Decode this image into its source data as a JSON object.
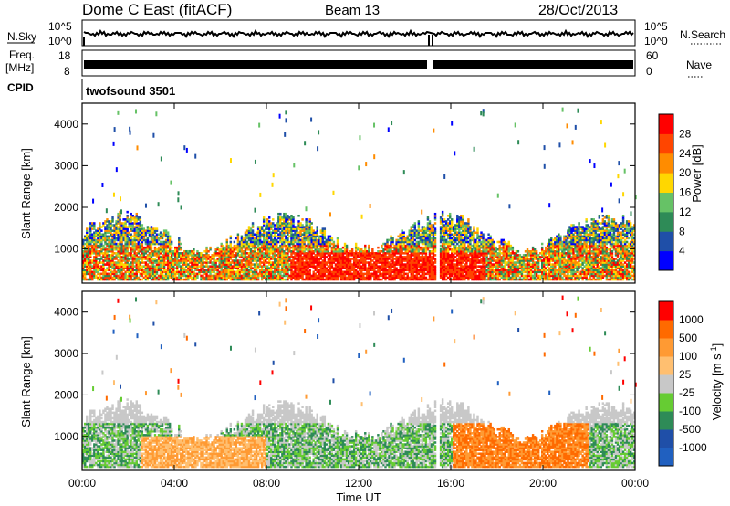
{
  "header": {
    "station": "Dome C East (fitACF)",
    "beam": "Beam 13",
    "date": "28/Oct/2013"
  },
  "side_labels": {
    "nsky": "N.Sky",
    "freq_line1": "Freq.",
    "freq_line2": "[MHz]",
    "cpid": "CPID",
    "nsearch": "N.Search",
    "nave": "Nave",
    "nsky_top": "10^5",
    "nsky_bottom": "10^0",
    "freq_top": "18",
    "freq_bottom": "8",
    "nave_top": "60",
    "nave_bottom": "0",
    "cpid_value": "twofsound  3501"
  },
  "colors": {
    "power_scale": [
      "#0000ff",
      "#1f4fa8",
      "#2e8b57",
      "#66c266",
      "#ffd700",
      "#ff8c00",
      "#ff4500",
      "#ff0000"
    ],
    "velocity_scale": [
      "#ff0000",
      "#ff6a00",
      "#ff9a33",
      "#ffbf70",
      "#c8c8c8",
      "#66cc33",
      "#2e8b57",
      "#1f4fa8",
      "#2060c0"
    ]
  },
  "chart_data": [
    {
      "type": "heatmap",
      "title": "",
      "xlabel": "Time UT",
      "ylabel": "Slant Range [km]",
      "xlim": [
        "00:00",
        "24:00"
      ],
      "ylim": [
        180,
        4500
      ],
      "x_ticks": [
        "00:00",
        "04:00",
        "08:00",
        "12:00",
        "16:00",
        "20:00",
        "00:00"
      ],
      "y_ticks": [
        1000,
        2000,
        3000,
        4000
      ],
      "colorbar": {
        "label": "Power [dB]",
        "ticks": [
          4,
          8,
          12,
          16,
          20,
          24,
          28
        ],
        "range": [
          0,
          30
        ]
      }
    },
    {
      "type": "heatmap",
      "title": "",
      "xlabel": "Time UT",
      "ylabel": "Slant Range [km]",
      "xlim": [
        "00:00",
        "24:00"
      ],
      "ylim": [
        180,
        4500
      ],
      "x_ticks": [
        "00:00",
        "04:00",
        "08:00",
        "12:00",
        "16:00",
        "20:00",
        "00:00"
      ],
      "y_ticks": [
        1000,
        2000,
        3000,
        4000
      ],
      "colorbar": {
        "label": "Velocity [m s^-1]",
        "ticks": [
          "1000",
          "500",
          "100",
          "25",
          "-25",
          "-100",
          "-500",
          "-1000"
        ]
      }
    }
  ]
}
